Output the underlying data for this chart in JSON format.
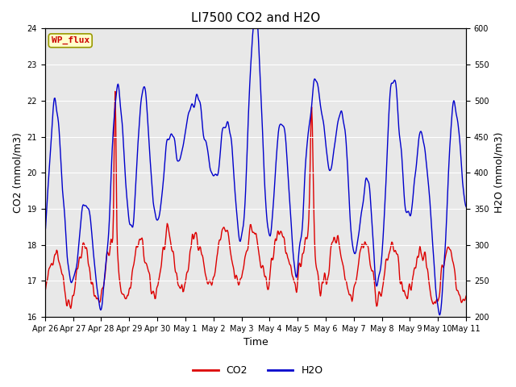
{
  "title": "LI7500 CO2 and H2O",
  "xlabel": "Time",
  "ylabel_left": "CO2 (mmol/m3)",
  "ylabel_right": "H2O (mmol/m3)",
  "ylim_left": [
    16.0,
    24.0
  ],
  "ylim_right": [
    200,
    600
  ],
  "annotation_text": "WP_flux",
  "annotation_color": "#cc0000",
  "annotation_bg": "#ffffcc",
  "annotation_border": "#999900",
  "co2_color": "#dd0000",
  "h2o_color": "#0000cc",
  "bg_color": "#e8e8e8",
  "legend_co2": "CO2",
  "legend_h2o": "H2O",
  "xtick_labels": [
    "Apr 26",
    "Apr 27",
    "Apr 28",
    "Apr 29",
    "Apr 30",
    "May 1",
    "May 2",
    "May 3",
    "May 4",
    "May 5",
    "May 6",
    "May 7",
    "May 8",
    "May 9",
    "May 10",
    "May 11"
  ],
  "title_fontsize": 11,
  "tick_fontsize": 7,
  "label_fontsize": 9,
  "grid_color": "#ffffff",
  "linewidth": 1.0
}
